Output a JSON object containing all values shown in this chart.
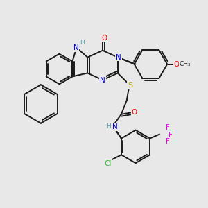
{
  "background_color": "#e8e8e8",
  "bond_color": "#1a1a1a",
  "atom_colors": {
    "N": "#0000ee",
    "O": "#ee0000",
    "S": "#bbaa00",
    "Cl": "#22bb22",
    "F": "#ee00ee",
    "H": "#5599aa",
    "C": "#1a1a1a"
  },
  "figsize": [
    3.0,
    3.0
  ],
  "dpi": 100
}
